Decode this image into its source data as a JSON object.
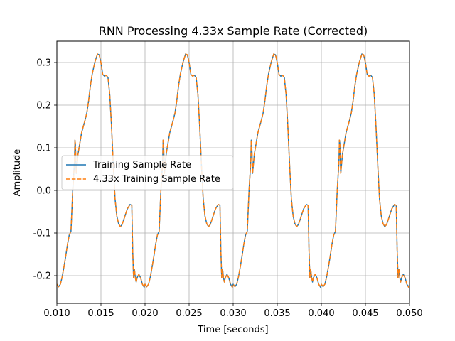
{
  "chart_data": {
    "type": "line",
    "title": "RNN Processing 4.33x Sample Rate (Corrected)",
    "xlabel": "Time [seconds]",
    "ylabel": "Amplitude",
    "xlim": [
      0.01,
      0.05
    ],
    "ylim": [
      -0.265,
      0.35
    ],
    "xticks": [
      "0.010",
      "0.015",
      "0.020",
      "0.025",
      "0.030",
      "0.035",
      "0.040",
      "0.045",
      "0.050"
    ],
    "yticks": [
      "-0.2",
      "-0.1",
      "0.0",
      "0.1",
      "0.2",
      "0.3"
    ],
    "grid": true,
    "legend_position": "center-left",
    "period": 0.01,
    "series": [
      {
        "name": "Training Sample Rate",
        "color": "#1f77b4",
        "dash": "solid",
        "points": [
          [
            0.01,
            -0.22
          ],
          [
            0.0102,
            -0.226
          ],
          [
            0.0104,
            -0.22
          ],
          [
            0.0106,
            -0.203
          ],
          [
            0.0108,
            -0.18
          ],
          [
            0.011,
            -0.155
          ],
          [
            0.0112,
            -0.127
          ],
          [
            0.0114,
            -0.105
          ],
          [
            0.0116,
            -0.096
          ],
          [
            0.0118,
            0.0
          ],
          [
            0.012,
            0.068
          ],
          [
            0.01205,
            0.118
          ],
          [
            0.0121,
            0.11
          ],
          [
            0.0122,
            0.04
          ],
          [
            0.0124,
            0.085
          ],
          [
            0.0126,
            0.11
          ],
          [
            0.0128,
            0.135
          ],
          [
            0.013,
            0.15
          ],
          [
            0.0132,
            0.165
          ],
          [
            0.0134,
            0.182
          ],
          [
            0.0136,
            0.21
          ],
          [
            0.0138,
            0.245
          ],
          [
            0.014,
            0.272
          ],
          [
            0.0143,
            0.3
          ],
          [
            0.0146,
            0.32
          ],
          [
            0.0148,
            0.318
          ],
          [
            0.015,
            0.3
          ],
          [
            0.0152,
            0.272
          ],
          [
            0.0154,
            0.268
          ],
          [
            0.0156,
            0.27
          ],
          [
            0.0158,
            0.265
          ],
          [
            0.016,
            0.225
          ],
          [
            0.0162,
            0.15
          ],
          [
            0.0164,
            0.06
          ],
          [
            0.0166,
            -0.02
          ],
          [
            0.0168,
            -0.06
          ],
          [
            0.017,
            -0.078
          ],
          [
            0.0172,
            -0.085
          ],
          [
            0.0174,
            -0.08
          ],
          [
            0.0176,
            -0.068
          ],
          [
            0.0178,
            -0.055
          ],
          [
            0.018,
            -0.043
          ],
          [
            0.0183,
            -0.033
          ],
          [
            0.0185,
            -0.035
          ],
          [
            0.0186,
            -0.14
          ],
          [
            0.0187,
            -0.205
          ],
          [
            0.0188,
            -0.185
          ],
          [
            0.0189,
            -0.205
          ],
          [
            0.019,
            -0.215
          ],
          [
            0.0191,
            -0.205
          ],
          [
            0.0193,
            -0.197
          ],
          [
            0.0195,
            -0.205
          ],
          [
            0.0197,
            -0.22
          ],
          [
            0.0199,
            -0.227
          ],
          [
            0.02,
            -0.22
          ]
        ]
      },
      {
        "name": "4.33x Training Sample Rate",
        "color": "#ff7f0e",
        "dash": "dashed",
        "points": "same-as-series-0"
      }
    ]
  }
}
